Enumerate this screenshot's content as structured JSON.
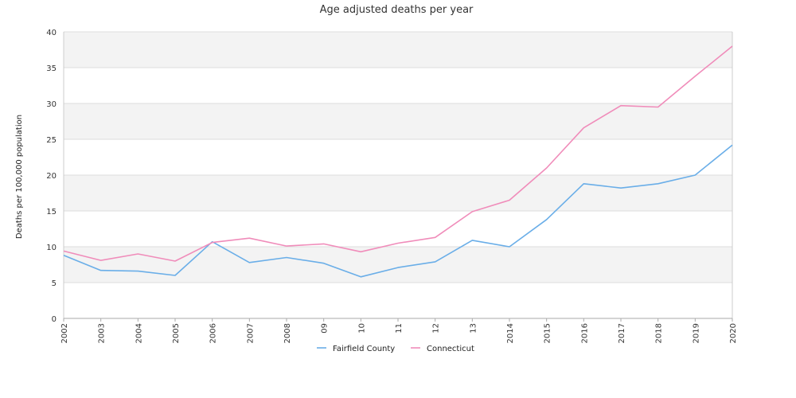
{
  "chart_data": {
    "type": "line",
    "title": "Age adjusted deaths per year",
    "xlabel": "",
    "ylabel": "Deaths per 100,000 population",
    "categories": [
      "2002",
      "2003",
      "2004",
      "2005",
      "2006",
      "2007",
      "2008",
      "09",
      "10",
      "11",
      "12",
      "13",
      "2014",
      "2015",
      "2016",
      "2017",
      "2018",
      "2019",
      "2020"
    ],
    "ylim": [
      0,
      40
    ],
    "yticks": [
      0,
      5,
      10,
      15,
      20,
      25,
      30,
      35,
      40
    ],
    "grid": "alternating horizontal bands",
    "legend_placement": "bottom-center",
    "series": [
      {
        "name": "Fairfield County",
        "color": "#6aaee8",
        "values": [
          8.8,
          6.7,
          6.6,
          6.0,
          10.7,
          7.8,
          8.5,
          7.7,
          5.8,
          7.1,
          7.9,
          10.9,
          10.0,
          13.8,
          18.8,
          18.2,
          18.8,
          20.0,
          24.2
        ]
      },
      {
        "name": "Connecticut",
        "color": "#f08cba",
        "values": [
          9.4,
          8.1,
          9.0,
          8.0,
          10.6,
          11.2,
          10.1,
          10.4,
          9.3,
          10.5,
          11.3,
          14.9,
          16.5,
          21.0,
          26.6,
          29.7,
          29.5,
          33.8,
          38.0
        ]
      }
    ],
    "colors": {
      "band": "#f3f3f3",
      "gridline": "#dddddd",
      "axis": "#cccccc",
      "text": "#333333"
    }
  }
}
